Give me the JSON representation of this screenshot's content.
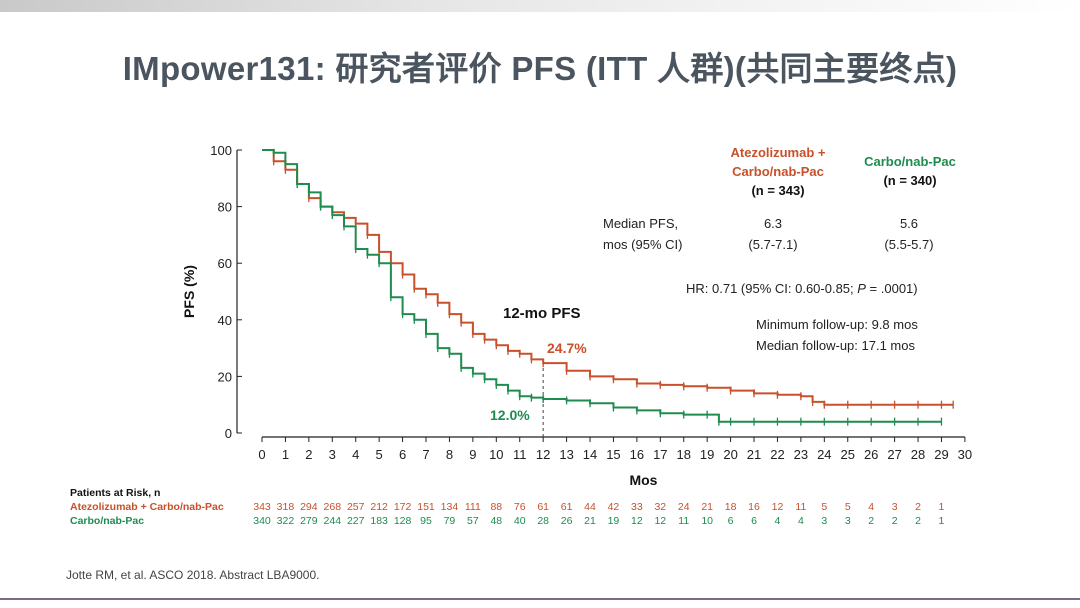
{
  "title": "IMpower131: 研究者评价 PFS (ITT 人群)(共同主要终点)",
  "colors": {
    "atezo": "#c8502a",
    "carbo": "#1e8c4e"
  },
  "legend": {
    "atezo_line1": "Atezolizumab +",
    "atezo_line2": "Carbo/nab-Pac",
    "atezo_n": "(n = 343)",
    "carbo_line1": "Carbo/nab-Pac",
    "carbo_n": "(n = 340)"
  },
  "stats": {
    "median_label_1": "Median PFS,",
    "median_label_2": "mos (95% CI)",
    "atezo_median": "6.3",
    "atezo_ci": "(5.7-7.1)",
    "carbo_median": "5.6",
    "carbo_ci": "(5.5-5.7)",
    "hr_prefix": "HR: 0.71 (95% CI: 0.60-0.85; ",
    "hr_p": "P",
    "hr_suffix": " = .0001)",
    "min_followup": "Minimum follow-up: 9.8 mos",
    "median_followup": "Median follow-up: 17.1 mos"
  },
  "annotations": {
    "twelve_mo": "12-mo PFS",
    "atezo_12mo": "24.7%",
    "carbo_12mo": "12.0%"
  },
  "risk_table": {
    "header": "Patients at Risk, n",
    "atezo_label": "Atezolizumab + Carbo/nab-Pac",
    "carbo_label": "Carbo/nab-Pac",
    "atezo_values": [
      "343",
      "318",
      "294",
      "268",
      "257",
      "212",
      "172",
      "151",
      "134",
      "111",
      "88",
      "76",
      "61",
      "61",
      "44",
      "42",
      "33",
      "32",
      "24",
      "21",
      "18",
      "16",
      "12",
      "11",
      "5",
      "5",
      "4",
      "3",
      "2",
      "1"
    ],
    "carbo_values": [
      "340",
      "322",
      "279",
      "244",
      "227",
      "183",
      "128",
      "95",
      "79",
      "57",
      "48",
      "40",
      "28",
      "26",
      "21",
      "19",
      "12",
      "12",
      "11",
      "10",
      "6",
      "6",
      "4",
      "4",
      "3",
      "3",
      "2",
      "2",
      "2",
      "1"
    ]
  },
  "footnote": "Jotte RM, et al. ASCO 2018. Abstract LBA9000.",
  "chart_data": {
    "type": "line",
    "step": true,
    "xlabel": "Mos",
    "ylabel": "PFS (%)",
    "xlim": [
      0,
      30
    ],
    "ylim": [
      0,
      100
    ],
    "xticks": [
      "0",
      "1",
      "2",
      "3",
      "4",
      "5",
      "6",
      "7",
      "8",
      "9",
      "10",
      "11",
      "12",
      "13",
      "14",
      "15",
      "16",
      "17",
      "18",
      "19",
      "20",
      "21",
      "22",
      "23",
      "24",
      "25",
      "26",
      "27",
      "28",
      "29",
      "30"
    ],
    "yticks": [
      "0",
      "20",
      "40",
      "60",
      "80",
      "100"
    ],
    "grid": false,
    "reference_x": 12,
    "series": [
      {
        "name": "Atezolizumab + Carbo/nab-Pac",
        "color": "#c8502a",
        "x": [
          0,
          0.5,
          1,
          1.5,
          2,
          2.5,
          3,
          3.5,
          4,
          4.5,
          5,
          5.5,
          6,
          6.5,
          7,
          7.5,
          8,
          8.5,
          9,
          9.5,
          10,
          10.5,
          11,
          11.5,
          12,
          13,
          14,
          15,
          16,
          17,
          18,
          19,
          20,
          21,
          22,
          23,
          23.5,
          24,
          25,
          26,
          27,
          28,
          29,
          29.5
        ],
        "y": [
          100,
          96,
          93,
          88,
          83,
          80,
          78,
          76,
          74,
          70,
          64,
          60,
          56,
          51,
          49,
          46,
          42,
          39,
          35,
          33,
          31,
          29,
          28,
          26,
          24.7,
          22,
          20,
          19,
          17.5,
          17,
          16.5,
          16,
          15,
          14,
          13.5,
          13,
          11,
          10,
          10,
          10,
          10,
          10,
          10,
          10
        ]
      },
      {
        "name": "Carbo/nab-Pac",
        "color": "#1e8c4e",
        "x": [
          0,
          0.5,
          1,
          1.5,
          2,
          2.5,
          3,
          3.5,
          4,
          4.5,
          5,
          5.5,
          6,
          6.5,
          7,
          7.5,
          8,
          8.5,
          9,
          9.5,
          10,
          10.5,
          11,
          11.5,
          12,
          13,
          14,
          15,
          16,
          17,
          18,
          19,
          19.5,
          20,
          21,
          22,
          23,
          24,
          25,
          26,
          27,
          28,
          29
        ],
        "y": [
          100,
          99,
          95,
          88,
          85,
          80,
          77,
          73,
          65,
          63,
          60,
          48,
          42,
          40,
          35,
          30,
          28,
          23,
          21,
          19,
          17,
          15,
          13,
          12.5,
          12.0,
          11.5,
          10.5,
          9,
          8,
          7,
          6.5,
          6.5,
          4,
          4,
          4,
          4,
          4,
          4,
          4,
          4,
          4,
          4,
          4
        ]
      }
    ]
  }
}
